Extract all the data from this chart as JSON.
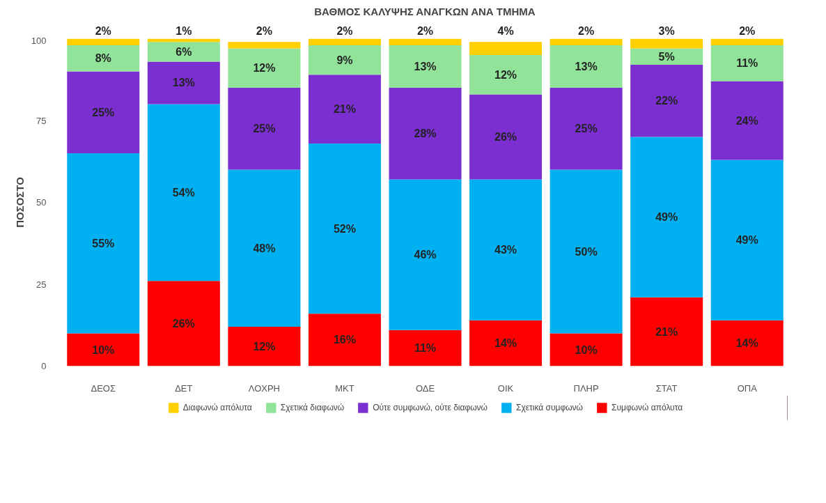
{
  "chart_data": {
    "type": "bar",
    "title": "ΒΑΘΜΟΣ ΚΑΛΥΨΗΣ ΑΝΑΓΚΩΝ ΑΝΑ ΤΜΗΜΑ",
    "ylabel": "ΠΟΣΟΣΤΟ",
    "categories": [
      "ΔΕΟΣ",
      "ΔΕΤ",
      "ΛΟΧΡΗ",
      "ΜΚΤ",
      "ΟΔΕ",
      "ΟΙΚ",
      "ΠΛΗΡ",
      "ΣΤΑΤ",
      "ΟΠΑ"
    ],
    "stacked": true,
    "ylim": [
      0,
      100
    ],
    "yticks": [
      0,
      25,
      50,
      75,
      100
    ],
    "grid": false,
    "legend": "bottom",
    "series": [
      {
        "name": "Συμφωνώ απόλυτα",
        "color": "#ff0000",
        "values": [
          10,
          26,
          12,
          16,
          11,
          14,
          10,
          21,
          14
        ],
        "value_labels": [
          "10%",
          "26%",
          "12%",
          "16%",
          "11%",
          "14%",
          "10%",
          "21%",
          "14%"
        ]
      },
      {
        "name": "Σχετικά συμφωνώ",
        "color": "#00b0f0",
        "values": [
          55,
          54,
          48,
          52,
          46,
          43,
          50,
          49,
          49
        ],
        "value_labels": [
          "55%",
          "54%",
          "48%",
          "52%",
          "46%",
          "43%",
          "50%",
          "49%",
          "49%"
        ]
      },
      {
        "name": "Ούτε συμφωνώ, ούτε διαφωνώ",
        "color": "#7b2fd0",
        "values": [
          25,
          13,
          25,
          21,
          28,
          26,
          25,
          22,
          24
        ],
        "value_labels": [
          "25%",
          "13%",
          "25%",
          "21%",
          "28%",
          "26%",
          "25%",
          "22%",
          "24%"
        ]
      },
      {
        "name": "Σχετικά διαφωνώ",
        "color": "#92e39a",
        "values": [
          8,
          6,
          12,
          9,
          13,
          12,
          13,
          5,
          11
        ],
        "value_labels": [
          "8%",
          "6%",
          "12%",
          "9%",
          "13%",
          "12%",
          "13%",
          "5%",
          "11%"
        ]
      },
      {
        "name": "Διαφωνώ απόλυτα",
        "color": "#ffd000",
        "values": [
          2,
          1,
          2,
          2,
          2,
          4,
          2,
          3,
          2
        ],
        "value_labels": [
          "2%",
          "1%",
          "2%",
          "2%",
          "2%",
          "4%",
          "2%",
          "3%",
          "2%"
        ]
      }
    ]
  }
}
